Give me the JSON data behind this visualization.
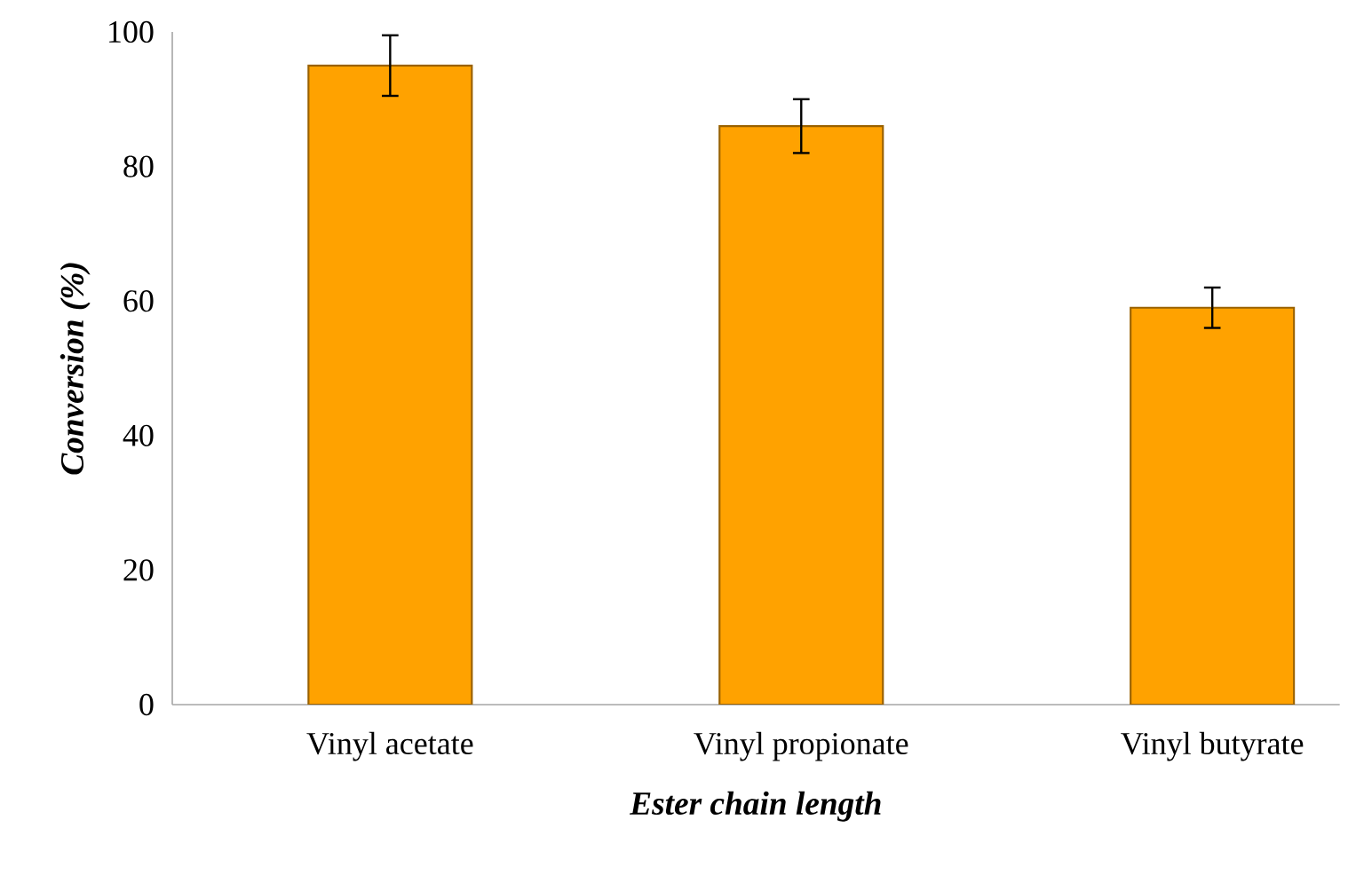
{
  "chart_data": {
    "type": "bar",
    "xlabel": "Ester chain length",
    "ylabel": "Conversion (%)",
    "categories": [
      "Vinyl acetate",
      "Vinyl propionate",
      "Vinyl butyrate"
    ],
    "values": [
      95,
      86,
      59
    ],
    "errors": [
      4.5,
      4,
      3
    ],
    "color": "#ffa200",
    "ylim": [
      0,
      100
    ],
    "yticks": [
      0,
      20,
      40,
      60,
      80,
      100
    ]
  }
}
